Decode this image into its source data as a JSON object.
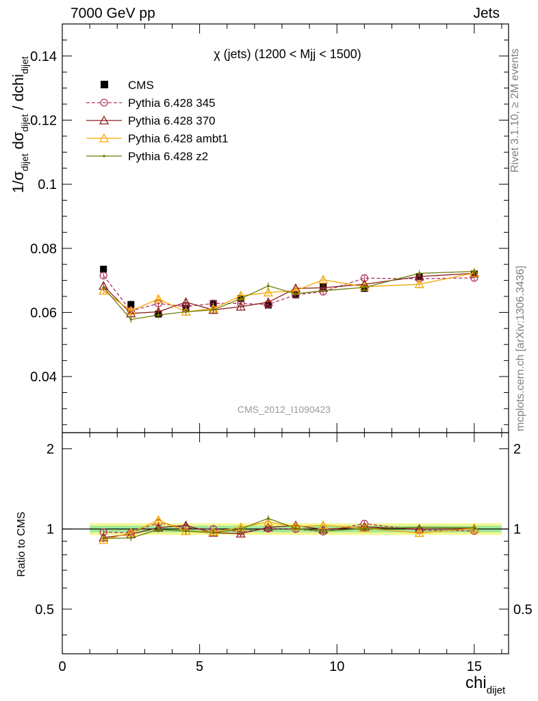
{
  "header": {
    "left": "7000 GeV pp",
    "right": "Jets"
  },
  "side_text": {
    "rivet": "Rivet 3.1.10, ≥ 2M events",
    "mcplots": "mcplots.cern.ch [arXiv:1306.3436]"
  },
  "chart_data": [
    {
      "type": "scatter",
      "title": "χ (jets) (1200 < Mjj < 1500)",
      "watermark": "CMS_2012_I1090423",
      "ylabel": "1/σ_dijet dσ_dijet / dchi_dijet",
      "xlabel": "chi_dijet",
      "xlim": [
        0,
        16.25
      ],
      "ylim": [
        0.0225,
        0.15
      ],
      "yticks": [
        "0.04",
        "0.06",
        "0.08",
        "0.1",
        "0.12",
        "0.14"
      ],
      "legend_position": "top-left",
      "x": [
        1.5,
        2.5,
        3.5,
        4.5,
        5.5,
        6.5,
        7.5,
        8.5,
        9.5,
        11,
        13,
        15
      ],
      "series": [
        {
          "name": "CMS",
          "color": "#000000",
          "marker": "square",
          "values": [
            0.0735,
            0.0625,
            0.0595,
            0.0613,
            0.0628,
            0.0643,
            0.0623,
            0.0655,
            0.068,
            0.0675,
            0.0712,
            0.072
          ]
        },
        {
          "name": "Pythia 6.428 345",
          "color": "#b03060",
          "marker": "open-circle",
          "dash": true,
          "values": [
            0.0715,
            0.0605,
            0.0628,
            0.0618,
            0.0628,
            0.0628,
            0.0625,
            0.0655,
            0.0665,
            0.0707,
            0.0705,
            0.0708
          ]
        },
        {
          "name": "Pythia 6.428 370",
          "color": "#8b1a1a",
          "marker": "open-triangle",
          "values": [
            0.0683,
            0.0597,
            0.0602,
            0.0632,
            0.0608,
            0.0618,
            0.0632,
            0.0675,
            0.0677,
            0.0688,
            0.0712,
            0.0722
          ]
        },
        {
          "name": "Pythia 6.428 ambt1",
          "color": "#f5a500",
          "marker": "open-triangle",
          "values": [
            0.0668,
            0.0605,
            0.0642,
            0.0602,
            0.0612,
            0.0652,
            0.0662,
            0.0668,
            0.0702,
            0.068,
            0.0688,
            0.0723
          ]
        },
        {
          "name": "Pythia 6.428 z2",
          "color": "#6b7a00",
          "marker": "dot",
          "values": [
            0.0678,
            0.0578,
            0.0592,
            0.0602,
            0.0608,
            0.0643,
            0.0683,
            0.0658,
            0.0668,
            0.0678,
            0.0722,
            0.0728
          ]
        }
      ]
    },
    {
      "type": "scatter",
      "ylabel": "Ratio to CMS",
      "xlabel": "chi_dijet",
      "xlim": [
        0,
        16.25
      ],
      "ylim": [
        0.34,
        2.3
      ],
      "log_y": true,
      "yticks": [
        "0.5",
        "1",
        "2"
      ],
      "xticks": [
        "0",
        "5",
        "10",
        "15"
      ],
      "band": "data uncertainty (green inner, yellow outer)",
      "x": [
        1.5,
        2.5,
        3.5,
        4.5,
        5.5,
        6.5,
        7.5,
        8.5,
        9.5,
        11,
        13,
        15
      ],
      "series": [
        {
          "name": "Pythia 6.428 345",
          "values": [
            0.973,
            0.968,
            1.055,
            1.008,
            1.0,
            0.977,
            1.003,
            1.0,
            0.978,
            1.047,
            0.99,
            0.983
          ]
        },
        {
          "name": "Pythia 6.428 370",
          "values": [
            0.929,
            0.955,
            1.012,
            1.031,
            0.968,
            0.961,
            1.014,
            1.031,
            0.996,
            1.019,
            1.0,
            1.003
          ]
        },
        {
          "name": "Pythia 6.428 ambt1",
          "values": [
            0.909,
            0.968,
            1.079,
            0.982,
            0.975,
            1.014,
            1.063,
            1.02,
            1.032,
            1.007,
            0.966,
            1.004
          ]
        },
        {
          "name": "Pythia 6.428 z2",
          "values": [
            0.922,
            0.925,
            0.995,
            0.982,
            0.968,
            1.0,
            1.096,
            1.005,
            0.982,
            1.004,
            1.014,
            1.011
          ]
        }
      ]
    }
  ]
}
